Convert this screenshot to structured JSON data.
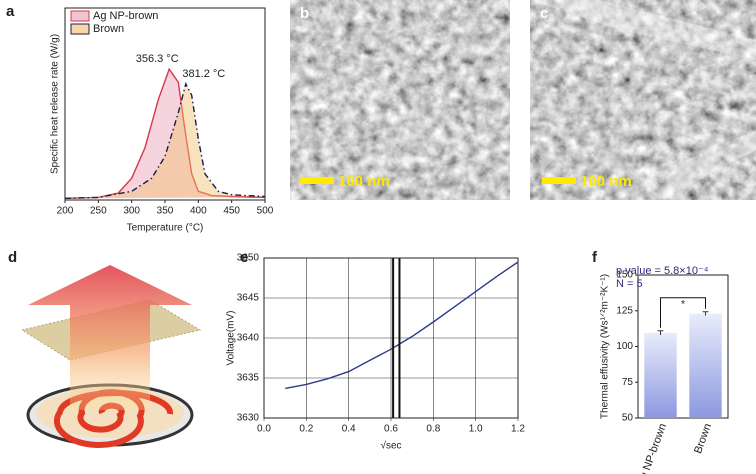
{
  "chart_data": [
    {
      "type": "line",
      "panel_label": "a",
      "x_label": "Temperature (°C)",
      "y_label": "Specific heat release rate (W/g)",
      "xlim": [
        200,
        500
      ],
      "xticks": [
        200,
        250,
        300,
        350,
        400,
        450,
        500
      ],
      "ylim": [
        0,
        220
      ],
      "legend": "upper-left",
      "annotations": [
        "356.3 °C",
        "381.2 °C"
      ],
      "series": [
        {
          "name": "Ag NP-brown",
          "color": "#d9364a",
          "fill_color": "#e8a0b4",
          "line_style": "solid",
          "x": [
            200,
            250,
            280,
            300,
            320,
            340,
            356.3,
            370,
            380,
            390,
            400,
            420,
            450,
            500
          ],
          "values": [
            2,
            3,
            8,
            25,
            60,
            115,
            150,
            135,
            80,
            30,
            10,
            5,
            4,
            3
          ]
        },
        {
          "name": "Brown",
          "color": "#1c1c4e",
          "fill_color": "#f2bf6e",
          "line_style": "dash-dot",
          "x": [
            200,
            250,
            300,
            330,
            350,
            370,
            381.2,
            390,
            400,
            410,
            430,
            450,
            500
          ],
          "values": [
            2,
            3,
            10,
            25,
            50,
            100,
            133,
            120,
            70,
            30,
            10,
            6,
            4
          ]
        }
      ]
    },
    {
      "type": "line",
      "panel_label": "e",
      "x_label": "√sec",
      "y_label": "Voltage(mV)",
      "xlim": [
        0,
        1.2
      ],
      "xticks": [
        {
          "value": 0,
          "label": "0.0"
        },
        0.2,
        0.4,
        0.6,
        0.8,
        {
          "value": 1,
          "label": "1.0"
        },
        1.2
      ],
      "ylim": [
        3630,
        3650
      ],
      "yticks": [
        3630,
        3635,
        3640,
        3645,
        3650
      ],
      "grid": true,
      "vlines": [
        0.61,
        0.64
      ],
      "series": [
        {
          "color": "#2b3a8c",
          "x": [
            0.1,
            0.2,
            0.3,
            0.4,
            0.5,
            0.6,
            0.7,
            0.8,
            0.9,
            1.0,
            1.1,
            1.2
          ],
          "values": [
            3633.7,
            3634.2,
            3634.9,
            3635.8,
            3637.2,
            3638.6,
            3640.2,
            3642.0,
            3643.9,
            3645.8,
            3647.7,
            3649.5
          ]
        }
      ]
    },
    {
      "type": "bar",
      "panel_label": "f",
      "y_label": "Thermal effusivity (Ws¹ᐟ²m⁻²K⁻¹)",
      "categories": [
        "Ag NP-brown",
        "Brown"
      ],
      "values": [
        109.5,
        123
      ],
      "errors": [
        1.5,
        1.3
      ],
      "color": "#8c98e0",
      "ylim": [
        50,
        150
      ],
      "yticks": [
        50,
        75,
        100,
        125,
        150
      ],
      "annotations": [
        "p value = 5.8×10⁻⁴",
        "N = 5",
        "*"
      ]
    }
  ],
  "images": [
    {
      "panel_label": "b",
      "scale_bar": "100 nm"
    },
    {
      "panel_label": "c",
      "scale_bar": "100 nm"
    }
  ],
  "diagram": {
    "panel_label": "d"
  }
}
